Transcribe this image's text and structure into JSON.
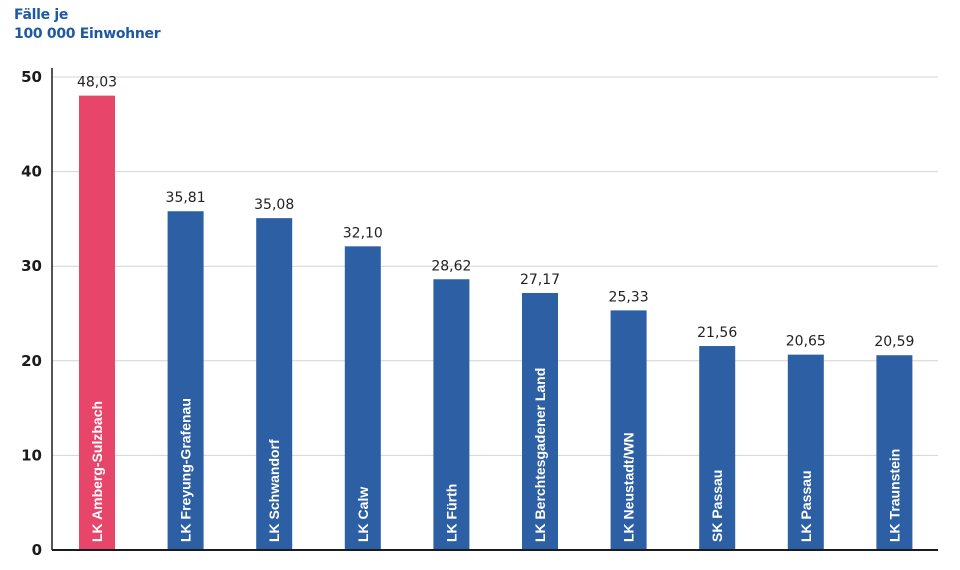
{
  "chart_data": {
    "type": "bar",
    "title": "",
    "ylabel_lines": [
      "Fälle je",
      "100 000 Einwohner"
    ],
    "xlabel": "",
    "ylim": [
      0,
      50
    ],
    "yticks": [
      0,
      10,
      20,
      30,
      40,
      50
    ],
    "grid": true,
    "categories": [
      "LK Amberg-Sulzbach",
      "LK Freyung-Grafenau",
      "LK Schwandorf",
      "LK Calw",
      "LK Fürth",
      "LK Berchtesgadener Land",
      "LK Neustadt/WN",
      "SK Passau",
      "LK Passau",
      "LK Traunstein"
    ],
    "values": [
      48.03,
      35.81,
      35.08,
      32.1,
      28.62,
      27.17,
      25.33,
      21.56,
      20.65,
      20.59
    ],
    "value_labels": [
      "48,03",
      "35,81",
      "35,08",
      "32,10",
      "28,62",
      "27,17",
      "25,33",
      "21,56",
      "20,65",
      "20,59"
    ],
    "highlight_index": 0,
    "colors": {
      "highlight": "#e8456b",
      "bar": "#2c5fa4",
      "grid": "#d4d4d4",
      "axis": "#1b1b1b",
      "title": "#1f5aa0"
    }
  }
}
